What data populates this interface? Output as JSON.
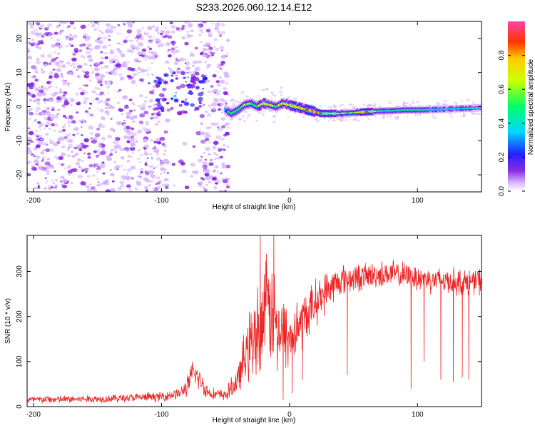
{
  "title": "S233.2026.060.12.14.E12",
  "chart_data": [
    {
      "type": "heatmap",
      "title": "S233.2026.060.12.14.E12",
      "xlabel": "Height of straight line (km)",
      "ylabel": "Frequency (Hz)",
      "xlim": [
        -205,
        150
      ],
      "ylim": [
        -25,
        25
      ],
      "xticks": [
        -200,
        -100,
        0,
        100
      ],
      "yticks": [
        -20,
        -10,
        0,
        10,
        20
      ],
      "colorbar": {
        "label": "Normalized spectral amplitude",
        "range": [
          0,
          1
        ],
        "ticks": [
          "0.0",
          "0.2",
          "0.4",
          "0.6",
          "0.8"
        ],
        "colormap": "rainbow"
      },
      "ridge": {
        "x": [
          -50,
          -45,
          -40,
          -35,
          -30,
          -25,
          -20,
          -15,
          -10,
          -5,
          0,
          5,
          10,
          15,
          20,
          25,
          30,
          40,
          50,
          60,
          70,
          80,
          90,
          100,
          110,
          120,
          130,
          140,
          150
        ],
        "y": [
          -1,
          -2,
          -1,
          0.5,
          1,
          0,
          1,
          0.5,
          0,
          1,
          0.5,
          0,
          -0.5,
          -1,
          -1.5,
          -2,
          -2,
          -2,
          -1.8,
          -1.5,
          -1.3,
          -1.2,
          -1,
          -1,
          -0.9,
          -0.8,
          -0.6,
          -0.5,
          -0.3
        ],
        "amplitude": [
          0.3,
          0.5,
          0.55,
          0.6,
          0.55,
          0.6,
          0.65,
          0.6,
          0.55,
          0.7,
          0.6,
          0.7,
          0.75,
          0.8,
          0.75,
          0.9,
          0.8,
          0.6,
          0.55,
          0.9,
          0.5,
          0.45,
          0.55,
          0.55,
          0.45,
          0.45,
          0.4,
          0.45,
          0.35
        ]
      }
    },
    {
      "type": "line",
      "xlabel": "Height of straight line (km)",
      "ylabel": "SNR (10 * v/v)",
      "xlim": [
        -205,
        150
      ],
      "ylim": [
        0,
        380
      ],
      "xticks": [
        -200,
        -100,
        0,
        100
      ],
      "yticks": [
        0,
        100,
        200,
        300
      ],
      "color": "#ee2222",
      "envelope": {
        "x": [
          -205,
          -150,
          -100,
          -85,
          -80,
          -75,
          -70,
          -65,
          -60,
          -50,
          -40,
          -35,
          -30,
          -25,
          -20,
          -15,
          -10,
          -5,
          0,
          10,
          20,
          30,
          40,
          60,
          80,
          100,
          120,
          140,
          150
        ],
        "mean": [
          15,
          17,
          22,
          30,
          45,
          75,
          60,
          35,
          28,
          25,
          60,
          110,
          140,
          170,
          200,
          220,
          180,
          160,
          150,
          190,
          230,
          260,
          280,
          290,
          295,
          285,
          280,
          275,
          280
        ],
        "spread": [
          10,
          10,
          12,
          15,
          25,
          40,
          30,
          20,
          15,
          15,
          40,
          70,
          100,
          120,
          140,
          150,
          120,
          100,
          90,
          70,
          60,
          50,
          40,
          35,
          35,
          35,
          35,
          35,
          35
        ]
      },
      "dips": [
        {
          "x": -5,
          "y": 15
        },
        {
          "x": 2,
          "y": 30
        },
        {
          "x": 10,
          "y": 60
        },
        {
          "x": 45,
          "y": 70
        },
        {
          "x": 95,
          "y": 40
        },
        {
          "x": 105,
          "y": 100
        },
        {
          "x": 118,
          "y": 60
        },
        {
          "x": 128,
          "y": 55
        },
        {
          "x": 135,
          "y": 65
        },
        {
          "x": 140,
          "y": 60
        }
      ]
    }
  ]
}
